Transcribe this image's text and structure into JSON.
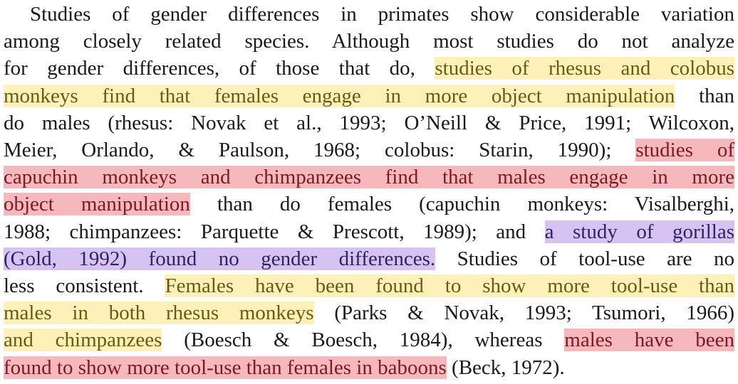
{
  "colors": {
    "highlight_yellow": "#fdf0b8",
    "highlight_red": "#f5b9bd",
    "highlight_purple": "#d6c3f2",
    "text": "#1a1a1a"
  },
  "paragraph": {
    "lines": [
      {
        "segments": [
          {
            "text": "Studies of gender differences in primates show considerable variation",
            "highlight": "none"
          }
        ]
      },
      {
        "segments": [
          {
            "text": "among closely related species. Although most studies do not analyze",
            "highlight": "none"
          }
        ]
      },
      {
        "segments": [
          {
            "text": "for gender differences, of those that do, ",
            "highlight": "none"
          },
          {
            "text": "studies of rhesus and colobus",
            "highlight": "yellow"
          }
        ]
      },
      {
        "segments": [
          {
            "text": "monkeys find that females engage in more object manipulation",
            "highlight": "yellow"
          },
          {
            "text": " than",
            "highlight": "none"
          }
        ]
      },
      {
        "segments": [
          {
            "text": "do males (rhesus: Novak et al., 1993; O’Neill & Price, 1991; Wilcoxon,",
            "highlight": "none"
          }
        ]
      },
      {
        "segments": [
          {
            "text": "Meier, Orlando, & Paulson, 1968; colobus: Starin, 1990); ",
            "highlight": "none"
          },
          {
            "text": "studies of",
            "highlight": "red"
          }
        ]
      },
      {
        "segments": [
          {
            "text": "capuchin monkeys and chimpanzees find that males engage in more",
            "highlight": "red"
          }
        ]
      },
      {
        "segments": [
          {
            "text": "object manipulation",
            "highlight": "red"
          },
          {
            "text": " than do females (capuchin monkeys: Visalberghi,",
            "highlight": "none"
          }
        ]
      },
      {
        "segments": [
          {
            "text": "1988; chimpanzees: Parquette & Prescott, 1989); and ",
            "highlight": "none"
          },
          {
            "text": "a study of gorillas",
            "highlight": "purple"
          }
        ]
      },
      {
        "segments": [
          {
            "text": "(Gold, 1992) found no gender differences.",
            "highlight": "purple"
          },
          {
            "text": " Studies of tool-use are no",
            "highlight": "none"
          }
        ]
      },
      {
        "segments": [
          {
            "text": "less consistent. ",
            "highlight": "none"
          },
          {
            "text": "Females have been found to show more tool-use than",
            "highlight": "yellow"
          }
        ]
      },
      {
        "segments": [
          {
            "text": "males in both rhesus monkeys",
            "highlight": "yellow"
          },
          {
            "text": " (Parks & Novak, 1993; Tsumori, 1966)",
            "highlight": "none"
          }
        ]
      },
      {
        "segments": [
          {
            "text": "and chimpanzees",
            "highlight": "yellow"
          },
          {
            "text": " (Boesch & Boesch, 1984), whereas ",
            "highlight": "none"
          },
          {
            "text": "males have been",
            "highlight": "red"
          }
        ]
      },
      {
        "segments": [
          {
            "text": "found to show more tool-use than females in baboons",
            "highlight": "red"
          },
          {
            "text": " (Beck, 1972).",
            "highlight": "none"
          }
        ]
      }
    ]
  }
}
